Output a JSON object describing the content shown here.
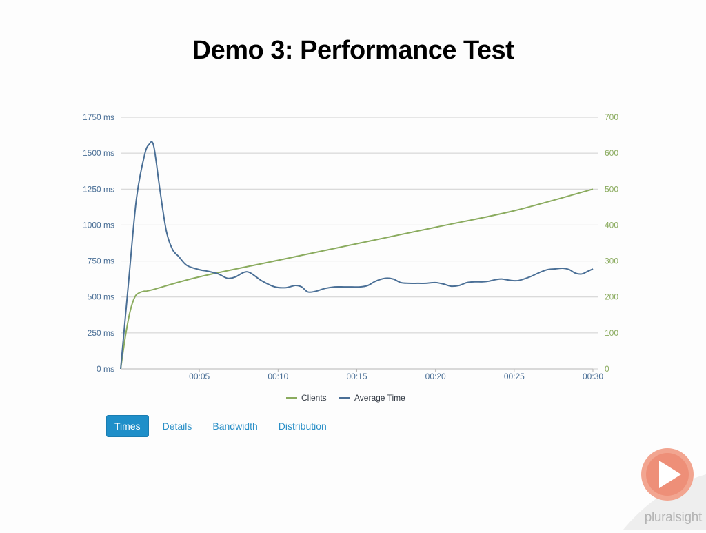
{
  "slide": {
    "title": "Demo 3: Performance Test"
  },
  "tabs": [
    {
      "label": "Times",
      "active": true
    },
    {
      "label": "Details",
      "active": false
    },
    {
      "label": "Bandwidth",
      "active": false
    },
    {
      "label": "Distribution",
      "active": false
    }
  ],
  "logo": {
    "text": "pluralsight"
  },
  "colors": {
    "clients": "#8aab5e",
    "average_time": "#4a6f96",
    "grid": "#cfcfcf",
    "left_axis_text": "#4a6f96",
    "right_axis_text": "#8aab5e"
  },
  "chart_data": {
    "type": "line",
    "x_unit": "seconds",
    "x_ticks": [
      "00:05",
      "00:10",
      "00:15",
      "00:20",
      "00:25",
      "00:30"
    ],
    "x_tick_values": [
      5,
      10,
      15,
      20,
      25,
      30
    ],
    "xlim": [
      0,
      30
    ],
    "y_left_ticks": [
      "0 ms",
      "250 ms",
      "500 ms",
      "750 ms",
      "1000 ms",
      "1250 ms",
      "1500 ms",
      "1750 ms"
    ],
    "y_left_lim": [
      0,
      1750
    ],
    "y_right_ticks": [
      "0",
      "100",
      "200",
      "300",
      "400",
      "500",
      "600",
      "700"
    ],
    "y_right_lim": [
      0,
      700
    ],
    "grid": true,
    "legend_position": "bottom-center",
    "series": [
      {
        "name": "Clients",
        "axis": "right",
        "x": [
          0,
          0.3,
          0.6,
          0.9,
          1.2,
          1.5,
          2,
          5,
          10,
          15,
          20,
          25,
          30
        ],
        "values": [
          0,
          90,
          160,
          200,
          212,
          216,
          220,
          256,
          302,
          348,
          394,
          440,
          500
        ]
      },
      {
        "name": "Average Time",
        "axis": "left",
        "x": [
          0,
          0.5,
          1,
          1.5,
          1.8,
          2.1,
          2.5,
          2.9,
          3.3,
          3.7,
          4.2,
          5,
          5.5,
          6.2,
          6.8,
          7.3,
          7.8,
          8.2,
          9,
          9.8,
          10.5,
          11.1,
          11.5,
          11.9,
          12.4,
          13,
          13.6,
          14.2,
          14.7,
          15.2,
          15.7,
          16.2,
          16.8,
          17.3,
          17.8,
          18.3,
          18.9,
          19.4,
          20,
          20.5,
          21,
          21.5,
          22,
          22.5,
          23,
          23.4,
          23.8,
          24.2,
          24.8,
          25.3,
          26,
          26.6,
          27.1,
          27.6,
          28.1,
          28.5,
          28.9,
          29.3,
          29.7,
          30
        ],
        "values": [
          0,
          600,
          1180,
          1480,
          1560,
          1550,
          1240,
          960,
          830,
          780,
          720,
          690,
          680,
          660,
          630,
          640,
          670,
          670,
          610,
          570,
          565,
          580,
          570,
          535,
          540,
          560,
          570,
          570,
          570,
          570,
          580,
          610,
          630,
          625,
          600,
          595,
          595,
          595,
          600,
          590,
          575,
          580,
          600,
          605,
          605,
          610,
          620,
          625,
          615,
          615,
          640,
          670,
          690,
          695,
          700,
          690,
          665,
          660,
          680,
          695
        ]
      }
    ]
  }
}
